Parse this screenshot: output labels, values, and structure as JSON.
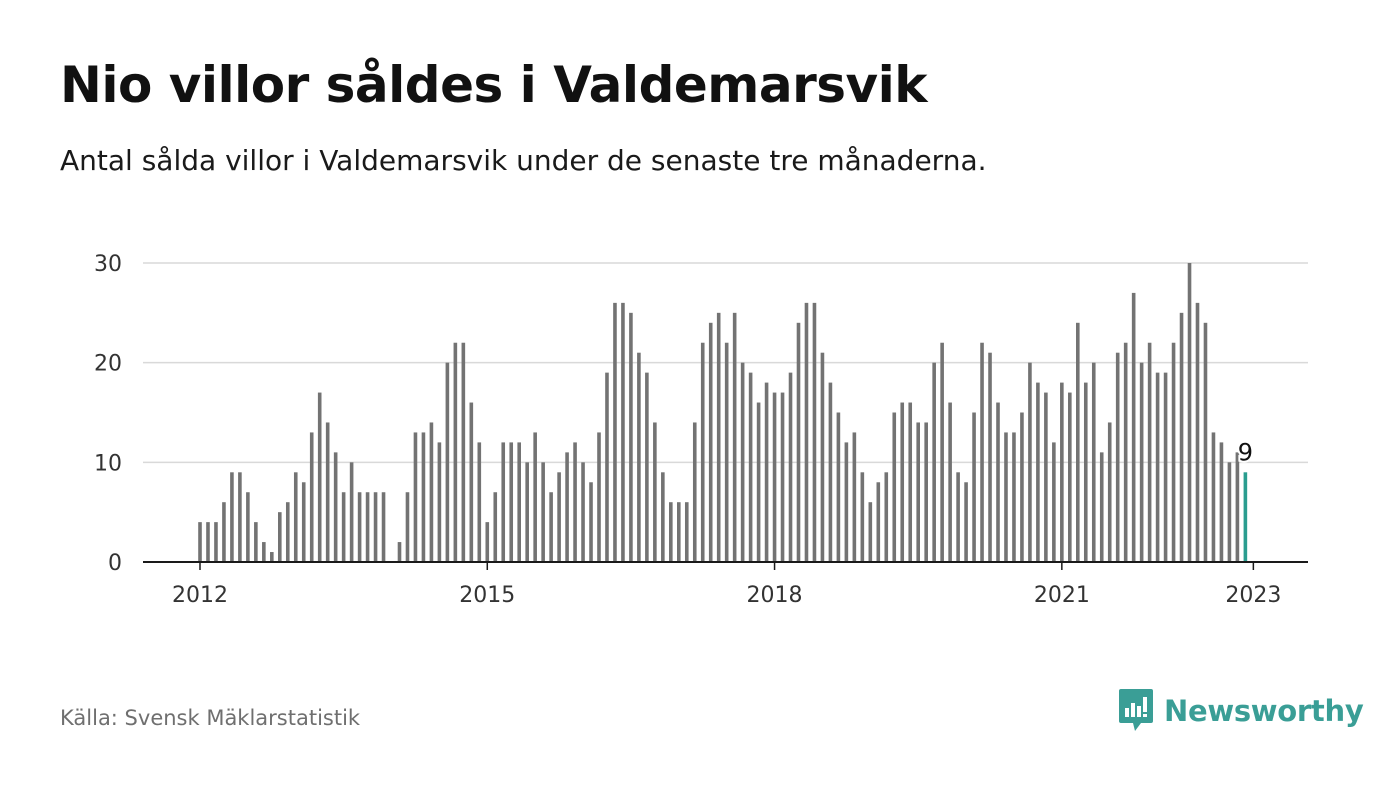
{
  "title": "Nio villor såldes i Valdemarsvik",
  "subtitle": "Antal sålda villor i Valdemarsvik under de senaste tre månaderna.",
  "source": "Källa: Svensk Mäklarstatistik",
  "brand": {
    "name": "Newsworthy",
    "icon": "bar-chart-speech-bubble-icon",
    "color": "#3a9e96"
  },
  "colors": {
    "bars": "#737373",
    "highlight": "#2a9d8f",
    "grid": "#d9d9d9",
    "axis": "#1a1a1a"
  },
  "chart_data": {
    "type": "bar",
    "title": "",
    "xlabel": "",
    "ylabel": "",
    "x_start": "2012-01",
    "x_end": "2023-01",
    "x_ticks": [
      "2012",
      "2015",
      "2018",
      "2021",
      "2023"
    ],
    "y_ticks": [
      0,
      10,
      20,
      30
    ],
    "ylim": [
      0,
      30
    ],
    "grid": true,
    "values": [
      4,
      4,
      4,
      6,
      9,
      9,
      7,
      4,
      2,
      1,
      5,
      6,
      9,
      8,
      13,
      17,
      14,
      11,
      7,
      10,
      7,
      7,
      7,
      7,
      null,
      2,
      7,
      13,
      13,
      14,
      12,
      20,
      22,
      22,
      16,
      12,
      4,
      7,
      12,
      12,
      12,
      10,
      13,
      10,
      7,
      9,
      11,
      12,
      10,
      8,
      13,
      19,
      26,
      26,
      25,
      21,
      19,
      14,
      9,
      6,
      6,
      6,
      14,
      22,
      24,
      25,
      22,
      25,
      20,
      19,
      16,
      18,
      17,
      17,
      19,
      24,
      26,
      26,
      21,
      18,
      15,
      12,
      13,
      9,
      6,
      8,
      9,
      15,
      16,
      16,
      14,
      14,
      20,
      22,
      16,
      9,
      8,
      15,
      22,
      21,
      16,
      13,
      13,
      15,
      20,
      18,
      17,
      12,
      18,
      17,
      24,
      18,
      20,
      11,
      14,
      21,
      22,
      27,
      20,
      22,
      19,
      19,
      22,
      25,
      30,
      26,
      24,
      13,
      12,
      10,
      11,
      9
    ],
    "highlight": {
      "label": "9",
      "value": 9
    }
  }
}
